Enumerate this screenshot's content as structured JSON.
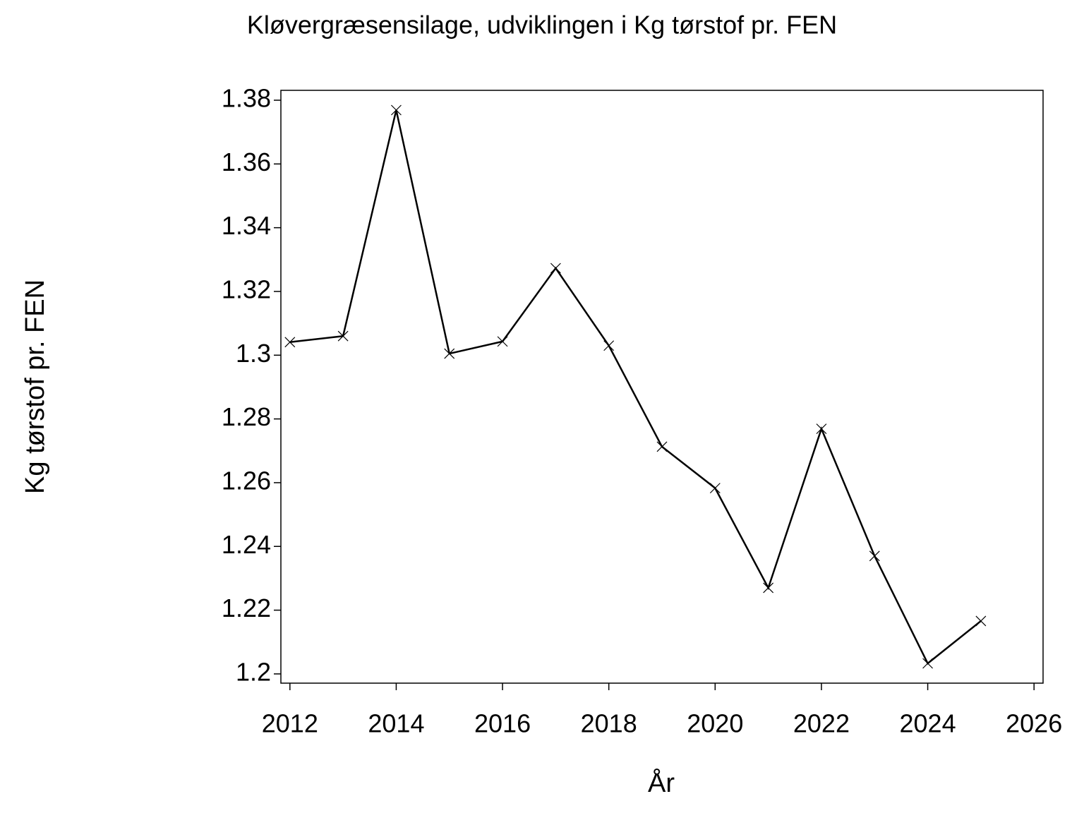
{
  "chart_data": {
    "type": "line",
    "title": "Kløvergræsensilage,  udviklingen  i  Kg  tørstof  pr.  FEN",
    "x_label": "År",
    "y_label": "Kg  tørstof  pr.  FEN",
    "x": [
      2012,
      2013,
      2014,
      2015,
      2016,
      2017,
      2018,
      2019,
      2020,
      2021,
      2022,
      2023,
      2024,
      2025
    ],
    "series": [
      {
        "name": "Kg tørstof pr. FEN",
        "color": "#000000",
        "values": [
          1.3041,
          1.306,
          1.3769,
          1.3005,
          1.3043,
          1.3273,
          1.303,
          1.2713,
          1.2583,
          1.227,
          1.2769,
          1.237,
          1.2033,
          1.2166
        ]
      }
    ],
    "xlim": [
      2011.83,
      2026.17
    ],
    "xticks": [
      2012,
      2014,
      2016,
      2018,
      2020,
      2022,
      2024,
      2026
    ],
    "ylim": [
      1.1971,
      1.3831
    ],
    "yticks": [
      1.2,
      1.22,
      1.24,
      1.26,
      1.28,
      1.3,
      1.32,
      1.34,
      1.36,
      1.38
    ],
    "marker": "x"
  }
}
